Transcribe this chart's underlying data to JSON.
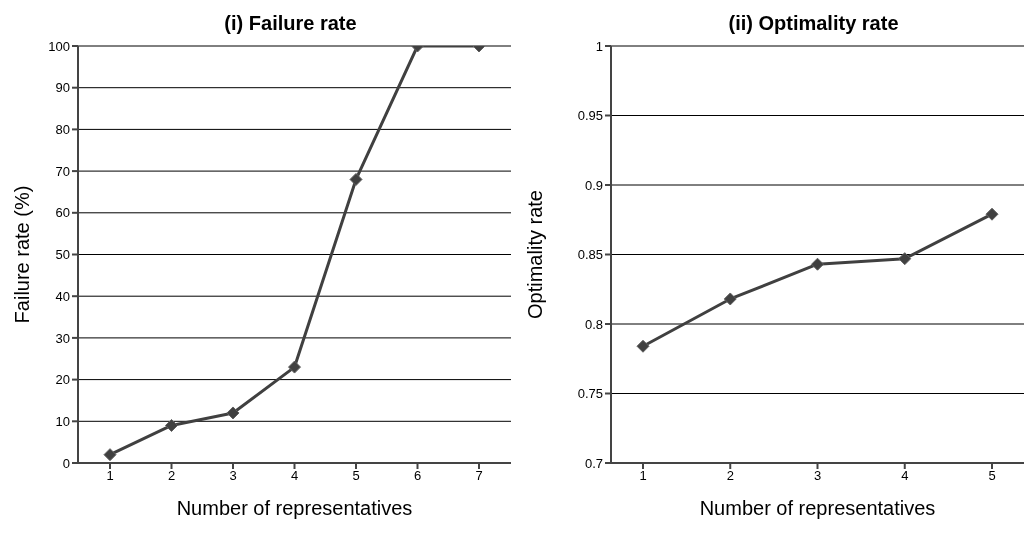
{
  "chart_data": [
    {
      "type": "line",
      "title": "(i)  Failure rate",
      "xlabel": "Number of representatives",
      "ylabel": "Failure rate (%)",
      "categories": [
        "1",
        "2",
        "3",
        "4",
        "5",
        "6",
        "7"
      ],
      "series": [
        {
          "color": "#404040",
          "values": [
            2,
            9,
            12,
            23,
            68,
            100,
            100
          ]
        }
      ],
      "ylim": [
        0,
        100
      ],
      "yticks": [
        0,
        10,
        20,
        30,
        40,
        50,
        60,
        70,
        80,
        90,
        100
      ],
      "grid": "y",
      "legend": false,
      "marker": "diamond",
      "line_style": "solid"
    },
    {
      "type": "line",
      "title": "(ii) Optimality rate",
      "xlabel": "Number of representatives",
      "ylabel": "Optimality rate",
      "categories": [
        "1",
        "2",
        "3",
        "4",
        "5"
      ],
      "series": [
        {
          "color": "#404040",
          "values": [
            0.784,
            0.818,
            0.843,
            0.847,
            0.879
          ]
        }
      ],
      "ylim": [
        0.7,
        1
      ],
      "yticks": [
        0.7,
        0.75,
        0.8,
        0.85,
        0.9,
        0.95,
        1
      ],
      "grid": "y",
      "legend": false,
      "marker": "diamond",
      "line_style": "solid"
    }
  ]
}
